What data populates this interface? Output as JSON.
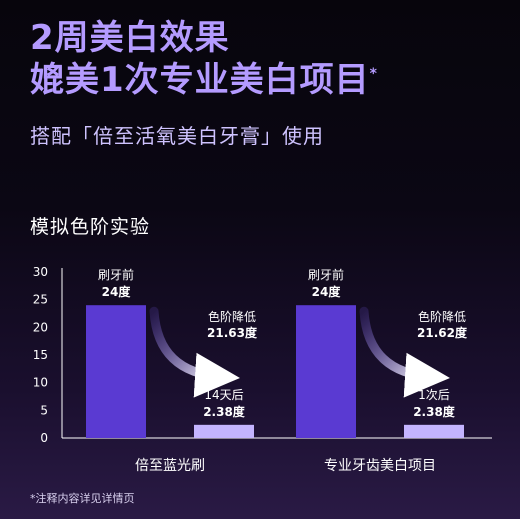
{
  "header": {
    "title_line1": "2周美白效果",
    "title_line2": "媲美1次专业美白项目",
    "title_mark": "*",
    "subtitle": "搭配「倍至活氧美白牙膏」使用"
  },
  "chart_title": "模拟色阶实验",
  "footnote": "*注释内容详见详情页",
  "colors": {
    "accent": "#b49bff",
    "bar_before": "#5a3ad2",
    "bar_after": "#c4b4ff",
    "arrow": "#ffffff",
    "axis": "#ffffff"
  },
  "chart_data": {
    "type": "bar",
    "title": "模拟色阶实验",
    "ylim": [
      0,
      30
    ],
    "yticks": [
      "0",
      "5",
      "10",
      "15",
      "20",
      "25",
      "30"
    ],
    "grid": false,
    "groups": [
      {
        "name": "倍至蓝光刷",
        "before": {
          "label_top": "刷牙前",
          "label_bottom": "24度",
          "value": 24
        },
        "after": {
          "label_top": "14天后",
          "label_bottom": "2.38度",
          "value": 2.38
        },
        "arrow_label_top": "色阶降低",
        "arrow_label_bottom": "21.63度"
      },
      {
        "name": "专业牙齿美白项目",
        "before": {
          "label_top": "刷牙前",
          "label_bottom": "24度",
          "value": 24
        },
        "after": {
          "label_top": "1次后",
          "label_bottom": "2.38度",
          "value": 2.38
        },
        "arrow_label_top": "色阶降低",
        "arrow_label_bottom": "21.62度"
      }
    ]
  }
}
